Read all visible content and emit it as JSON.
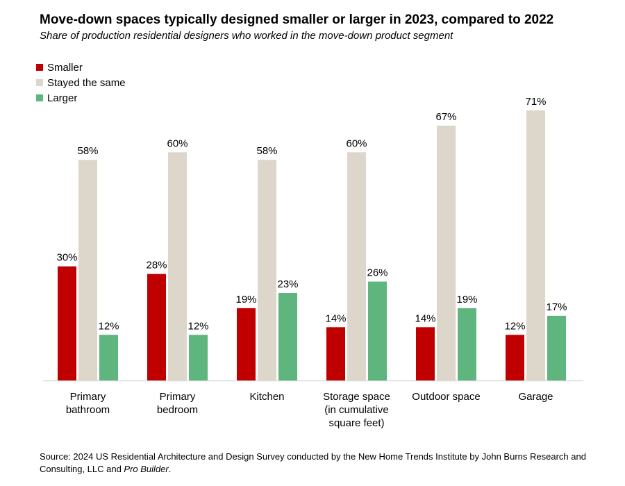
{
  "title": "Move-down spaces typically designed smaller or larger in 2023, compared to 2022",
  "subtitle": "Share of production residential designers who worked in the move-down product segment",
  "source_text": "Source: 2024 US Residential Architecture and Design Survey conducted by the New Home Trends Institute by John Burns Research and Consulting, LLC and ",
  "source_italic": "Pro Builder",
  "source_end": ".",
  "chart_data": {
    "type": "bar",
    "title": "Move-down spaces typically designed smaller or larger in 2023, compared to 2022",
    "subtitle": "Share of production residential designers who worked in the move-down product segment",
    "categories": [
      [
        "Primary",
        "bathroom"
      ],
      [
        "Primary",
        "bedroom"
      ],
      [
        "Kitchen"
      ],
      [
        "Storage space",
        "(in cumulative",
        "square feet)"
      ],
      [
        "Outdoor space"
      ],
      [
        "Garage"
      ]
    ],
    "series": [
      {
        "name": "Smaller",
        "color": "#c00000",
        "values": [
          30,
          28,
          19,
          14,
          14,
          12
        ]
      },
      {
        "name": "Stayed the same",
        "color": "#ddd6ca",
        "values": [
          58,
          60,
          58,
          60,
          67,
          71
        ]
      },
      {
        "name": "Larger",
        "color": "#5eb57d",
        "values": [
          12,
          12,
          23,
          26,
          19,
          17
        ]
      }
    ],
    "unit": "%",
    "ylim": [
      0,
      71
    ],
    "legend": "top-left",
    "grid": false
  }
}
